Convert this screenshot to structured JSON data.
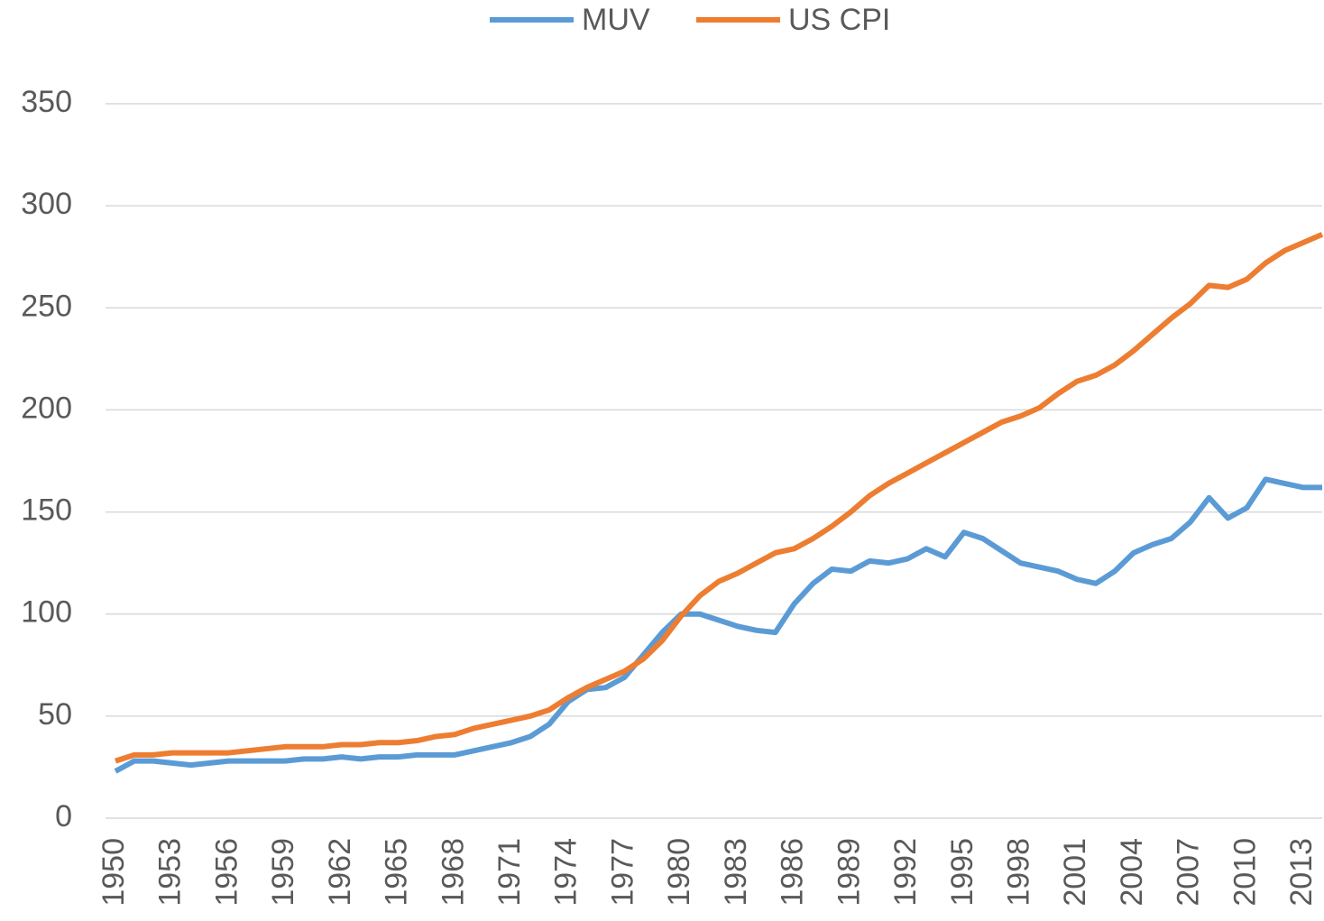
{
  "chart_data": {
    "type": "line",
    "x": [
      1950,
      1951,
      1952,
      1953,
      1954,
      1955,
      1956,
      1957,
      1958,
      1959,
      1960,
      1961,
      1962,
      1963,
      1964,
      1965,
      1966,
      1967,
      1968,
      1969,
      1970,
      1971,
      1972,
      1973,
      1974,
      1975,
      1976,
      1977,
      1978,
      1979,
      1980,
      1981,
      1982,
      1983,
      1984,
      1985,
      1986,
      1987,
      1988,
      1989,
      1990,
      1991,
      1992,
      1993,
      1994,
      1995,
      1996,
      1997,
      1998,
      1999,
      2000,
      2001,
      2002,
      2003,
      2004,
      2005,
      2006,
      2007,
      2008,
      2009,
      2010,
      2011,
      2012,
      2013,
      2014
    ],
    "series": [
      {
        "name": "MUV",
        "color": "#5b9bd5",
        "values": [
          23,
          28,
          28,
          27,
          26,
          27,
          28,
          28,
          28,
          28,
          29,
          29,
          30,
          29,
          30,
          30,
          31,
          31,
          31,
          33,
          35,
          37,
          40,
          46,
          57,
          63,
          64,
          69,
          80,
          91,
          100,
          100,
          97,
          94,
          92,
          91,
          105,
          115,
          122,
          121,
          126,
          125,
          127,
          132,
          128,
          140,
          137,
          131,
          125,
          123,
          121,
          117,
          115,
          121,
          130,
          134,
          137,
          145,
          157,
          147,
          152,
          166,
          164,
          162,
          162
        ]
      },
      {
        "name": "US CPI",
        "color": "#ed7d31",
        "values": [
          28,
          31,
          31,
          32,
          32,
          32,
          32,
          33,
          34,
          35,
          35,
          35,
          36,
          36,
          37,
          37,
          38,
          40,
          41,
          44,
          46,
          48,
          50,
          53,
          59,
          64,
          68,
          72,
          78,
          87,
          99,
          109,
          116,
          120,
          125,
          130,
          132,
          137,
          143,
          150,
          158,
          164,
          169,
          174,
          179,
          184,
          189,
          194,
          197,
          201,
          208,
          214,
          217,
          222,
          229,
          237,
          245,
          252,
          261,
          260,
          264,
          272,
          278,
          282,
          286
        ]
      }
    ],
    "xlim": [
      1950,
      2014
    ],
    "xticks": [
      1950,
      1953,
      1956,
      1959,
      1962,
      1965,
      1968,
      1971,
      1974,
      1977,
      1980,
      1983,
      1986,
      1989,
      1992,
      1995,
      1998,
      2001,
      2004,
      2007,
      2010,
      2013
    ],
    "ylim": [
      0,
      350
    ],
    "yticks": [
      0,
      50,
      100,
      150,
      200,
      250,
      300,
      350
    ],
    "grid": true,
    "legend": "top"
  }
}
